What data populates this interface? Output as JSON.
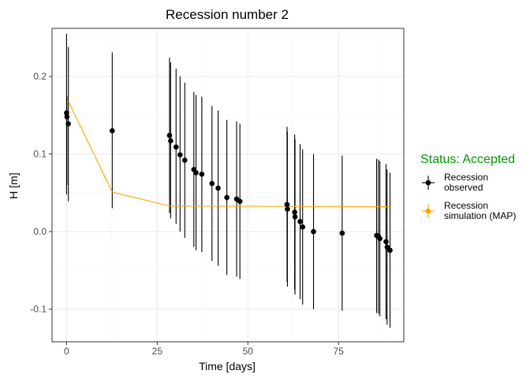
{
  "chart_data": {
    "type": "scatter",
    "title": "Recession number 2",
    "xlabel": "Time [days]",
    "ylabel": "H [m]",
    "xlim": [
      -4,
      93
    ],
    "ylim": [
      -0.142,
      0.262
    ],
    "x_ticks": [
      0,
      25,
      50,
      75
    ],
    "y_ticks": [
      -0.1,
      0.0,
      0.1,
      0.2
    ],
    "x_tick_labels": [
      "0",
      "25",
      "50",
      "75"
    ],
    "y_tick_labels": [
      "-0.1",
      "0.0",
      "0.1",
      "0.2"
    ],
    "grid": true,
    "legend": {
      "title": "Status: Accepted",
      "title_color": "#009900",
      "position": "right",
      "entries": [
        {
          "line1": "Recession",
          "line2": "observed",
          "color": "#000000"
        },
        {
          "line1": "Recession",
          "line2": "simulation (MAP)",
          "color": "#FFA500"
        }
      ]
    },
    "series": [
      {
        "name": "Recession observed",
        "color": "#000000",
        "points": [
          {
            "x": 0.0,
            "y": 0.153,
            "lo": 0.048,
            "hi": 0.255
          },
          {
            "x": 0.1,
            "y": 0.148,
            "lo": 0.06,
            "hi": 0.175
          },
          {
            "x": 0.5,
            "y": 0.139,
            "lo": 0.039,
            "hi": 0.238
          },
          {
            "x": 12.6,
            "y": 0.13,
            "lo": 0.03,
            "hi": 0.231
          },
          {
            "x": 28.4,
            "y": 0.124,
            "lo": 0.024,
            "hi": 0.224
          },
          {
            "x": 28.7,
            "y": 0.117,
            "lo": 0.017,
            "hi": 0.218
          },
          {
            "x": 30.2,
            "y": 0.109,
            "lo": 0.01,
            "hi": 0.21
          },
          {
            "x": 31.3,
            "y": 0.099,
            "lo": 0.0,
            "hi": 0.2
          },
          {
            "x": 32.6,
            "y": 0.092,
            "lo": -0.008,
            "hi": 0.192
          },
          {
            "x": 35.1,
            "y": 0.08,
            "lo": -0.02,
            "hi": 0.18
          },
          {
            "x": 35.7,
            "y": 0.076,
            "lo": -0.024,
            "hi": 0.176
          },
          {
            "x": 37.3,
            "y": 0.074,
            "lo": -0.026,
            "hi": 0.174
          },
          {
            "x": 40.1,
            "y": 0.062,
            "lo": -0.038,
            "hi": 0.162
          },
          {
            "x": 41.8,
            "y": 0.056,
            "lo": -0.044,
            "hi": 0.156
          },
          {
            "x": 44.2,
            "y": 0.044,
            "lo": -0.056,
            "hi": 0.144
          },
          {
            "x": 46.9,
            "y": 0.042,
            "lo": -0.058,
            "hi": 0.142
          },
          {
            "x": 47.8,
            "y": 0.039,
            "lo": -0.061,
            "hi": 0.139
          },
          {
            "x": 60.8,
            "y": 0.035,
            "lo": -0.065,
            "hi": 0.135
          },
          {
            "x": 60.9,
            "y": 0.029,
            "lo": -0.071,
            "hi": 0.129
          },
          {
            "x": 62.9,
            "y": 0.025,
            "lo": -0.075,
            "hi": 0.125
          },
          {
            "x": 63.0,
            "y": 0.019,
            "lo": -0.081,
            "hi": 0.119
          },
          {
            "x": 64.4,
            "y": 0.013,
            "lo": -0.087,
            "hi": 0.113
          },
          {
            "x": 65.1,
            "y": 0.006,
            "lo": -0.094,
            "hi": 0.106
          },
          {
            "x": 68.1,
            "y": 0.0,
            "lo": -0.1,
            "hi": 0.1
          },
          {
            "x": 76.0,
            "y": -0.002,
            "lo": -0.102,
            "hi": 0.098
          },
          {
            "x": 85.5,
            "y": -0.005,
            "lo": -0.105,
            "hi": 0.094
          },
          {
            "x": 86.0,
            "y": -0.006,
            "lo": -0.106,
            "hi": 0.093
          },
          {
            "x": 86.4,
            "y": -0.009,
            "lo": -0.109,
            "hi": 0.091
          },
          {
            "x": 88.1,
            "y": -0.013,
            "lo": -0.113,
            "hi": 0.087
          },
          {
            "x": 88.4,
            "y": -0.02,
            "lo": -0.12,
            "hi": 0.08
          },
          {
            "x": 89.2,
            "y": -0.024,
            "lo": -0.124,
            "hi": 0.076
          }
        ]
      },
      {
        "name": "Recession simulation (MAP)",
        "color": "#FFA500",
        "points": [
          {
            "x": 0.5,
            "y": 0.168
          },
          {
            "x": 12.6,
            "y": 0.051
          },
          {
            "x": 28.4,
            "y": 0.033
          },
          {
            "x": 89.2,
            "y": 0.032
          }
        ]
      }
    ]
  }
}
